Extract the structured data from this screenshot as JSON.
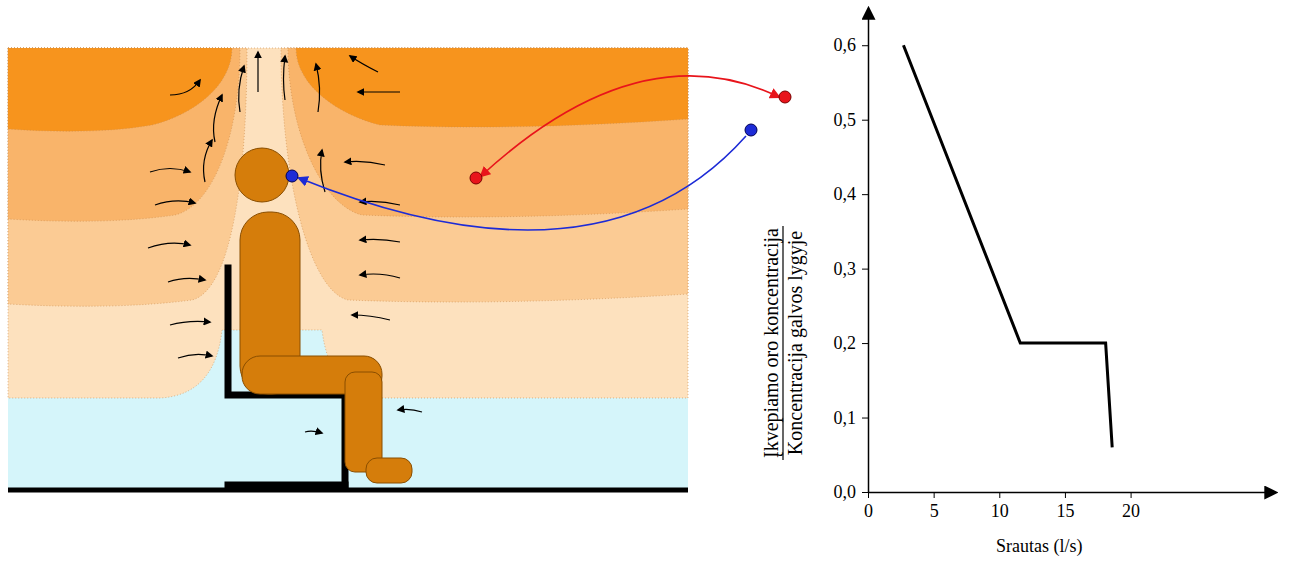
{
  "chart_data": {
    "type": "line",
    "x_label": "Srautas (l/s)",
    "y_label": {
      "numerator": "Įkvepiamo oro koncentracija",
      "denominator": "Koncentracija galvos lygyje"
    },
    "x": [
      2.7,
      11.6,
      18.1,
      18.6
    ],
    "values": [
      0.6,
      0.2,
      0.2,
      0.06
    ],
    "color": "#000000",
    "xlim": [
      0,
      31
    ],
    "ylim": [
      0,
      0.65
    ],
    "xticks": [
      0,
      5,
      10,
      15,
      20
    ],
    "yticks": [
      {
        "value": 0,
        "label": "0,0"
      },
      {
        "value": 0.1,
        "label": "0,1"
      },
      {
        "value": 0.2,
        "label": "0,2"
      },
      {
        "value": 0.3,
        "label": "0,3"
      },
      {
        "value": 0.4,
        "label": "0,4"
      },
      {
        "value": 0.5,
        "label": "0,5"
      },
      {
        "value": 0.6,
        "label": "0,6"
      }
    ]
  }
}
